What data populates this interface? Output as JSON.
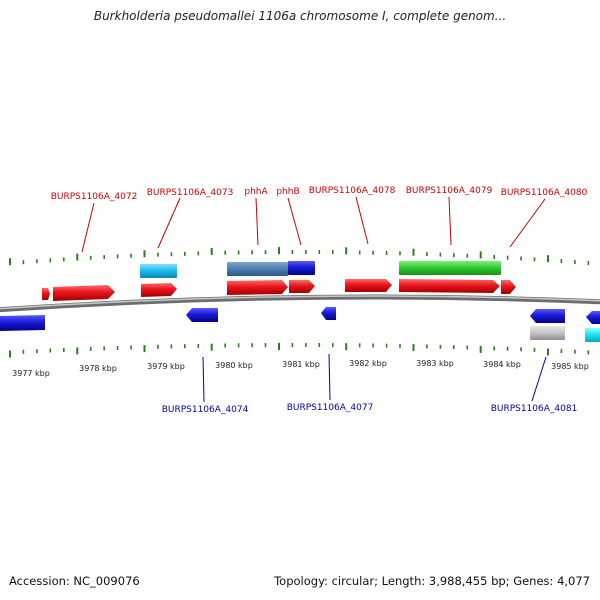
{
  "title": "Burkholderia pseudomallei 1106a chromosome I, complete genom...",
  "footer": {
    "accession": "Accession: NC_009076",
    "summary": "Topology: circular; Length: 3,988,455 bp; Genes: 4,077"
  },
  "scale_labels": [
    "3977 kbp",
    "3978 kbp",
    "3979 kbp",
    "3980 kbp",
    "3981 kbp",
    "3982 kbp",
    "3983 kbp",
    "3984 kbp",
    "3985 kbp"
  ],
  "upper_labels": [
    "BURPS1106A_4072",
    "BURPS1106A_4073",
    "phhA",
    "phhB",
    "BURPS1106A_4078",
    "BURPS1106A_4079",
    "BURPS1106A_4080"
  ],
  "lower_labels": [
    "BURPS1106A_4074",
    "BURPS1106A_4077",
    "BURPS1106A_4081"
  ],
  "colors": {
    "forward_label": "#cc0000",
    "reverse_label": "#0000aa",
    "forward_gene": "#e8141c",
    "reverse_gene": "#1a1ad6",
    "tick": "#2e7d1e",
    "backbone": "#8a8a8a"
  }
}
